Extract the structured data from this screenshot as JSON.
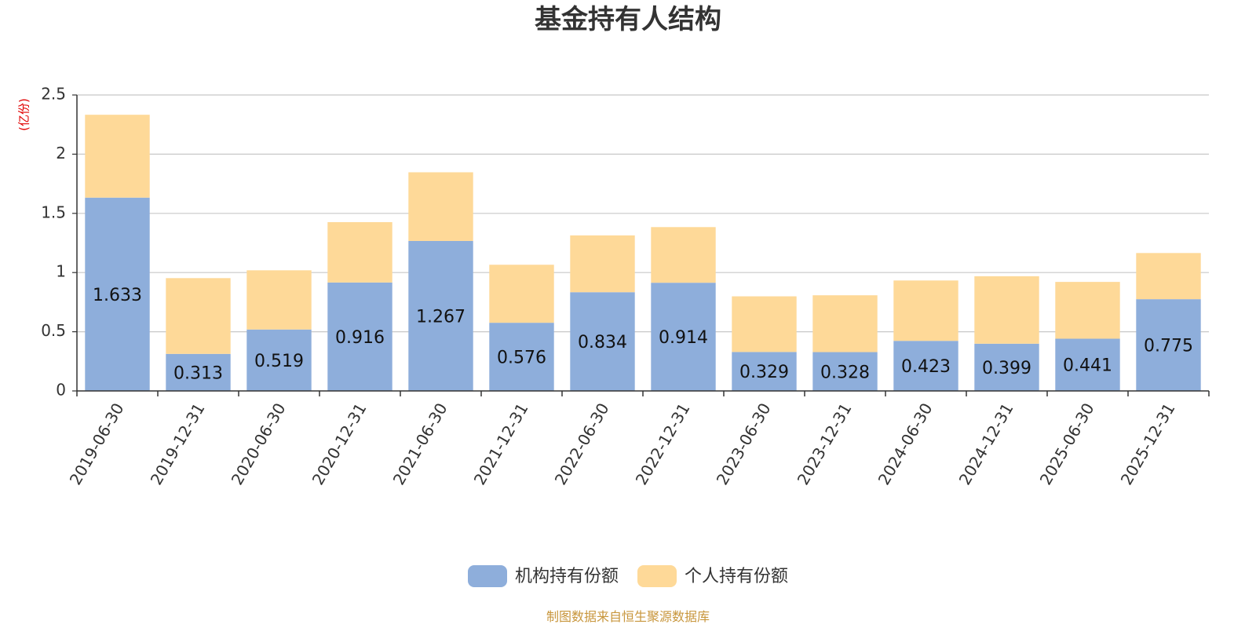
{
  "chart_data": {
    "type": "bar",
    "stacked": true,
    "title": "基金持有人结构",
    "ylabel": "(亿份)",
    "ylim": [
      0,
      2.5
    ],
    "yticks": [
      "0",
      "0.5",
      "1",
      "1.5",
      "2",
      "2.5"
    ],
    "grid": true,
    "legend_position": "bottom",
    "categories": [
      "2019-06-30",
      "2019-12-31",
      "2020-06-30",
      "2020-12-31",
      "2021-06-30",
      "2021-12-31",
      "2022-06-30",
      "2022-12-31",
      "2023-06-30",
      "2023-12-31",
      "2024-06-30",
      "2024-12-31",
      "2025-06-30",
      "2025-12-31"
    ],
    "series": [
      {
        "name": "机构持有份额",
        "color": "#8eaedb",
        "values": [
          1.633,
          0.313,
          0.519,
          0.916,
          1.267,
          0.576,
          0.834,
          0.914,
          0.329,
          0.328,
          0.423,
          0.399,
          0.441,
          0.775
        ],
        "labels": [
          "1.633",
          "0.313",
          "0.519",
          "0.916",
          "1.267",
          "0.576",
          "0.834",
          "0.914",
          "0.329",
          "0.328",
          "0.423",
          "0.399",
          "0.441",
          "0.775"
        ]
      },
      {
        "name": "个人持有份额",
        "color": "#fed998",
        "values": [
          0.7,
          0.64,
          0.5,
          0.51,
          0.58,
          0.49,
          0.48,
          0.47,
          0.47,
          0.48,
          0.51,
          0.57,
          0.48,
          0.39
        ]
      }
    ],
    "source": "制图数据来自恒生聚源数据库"
  }
}
